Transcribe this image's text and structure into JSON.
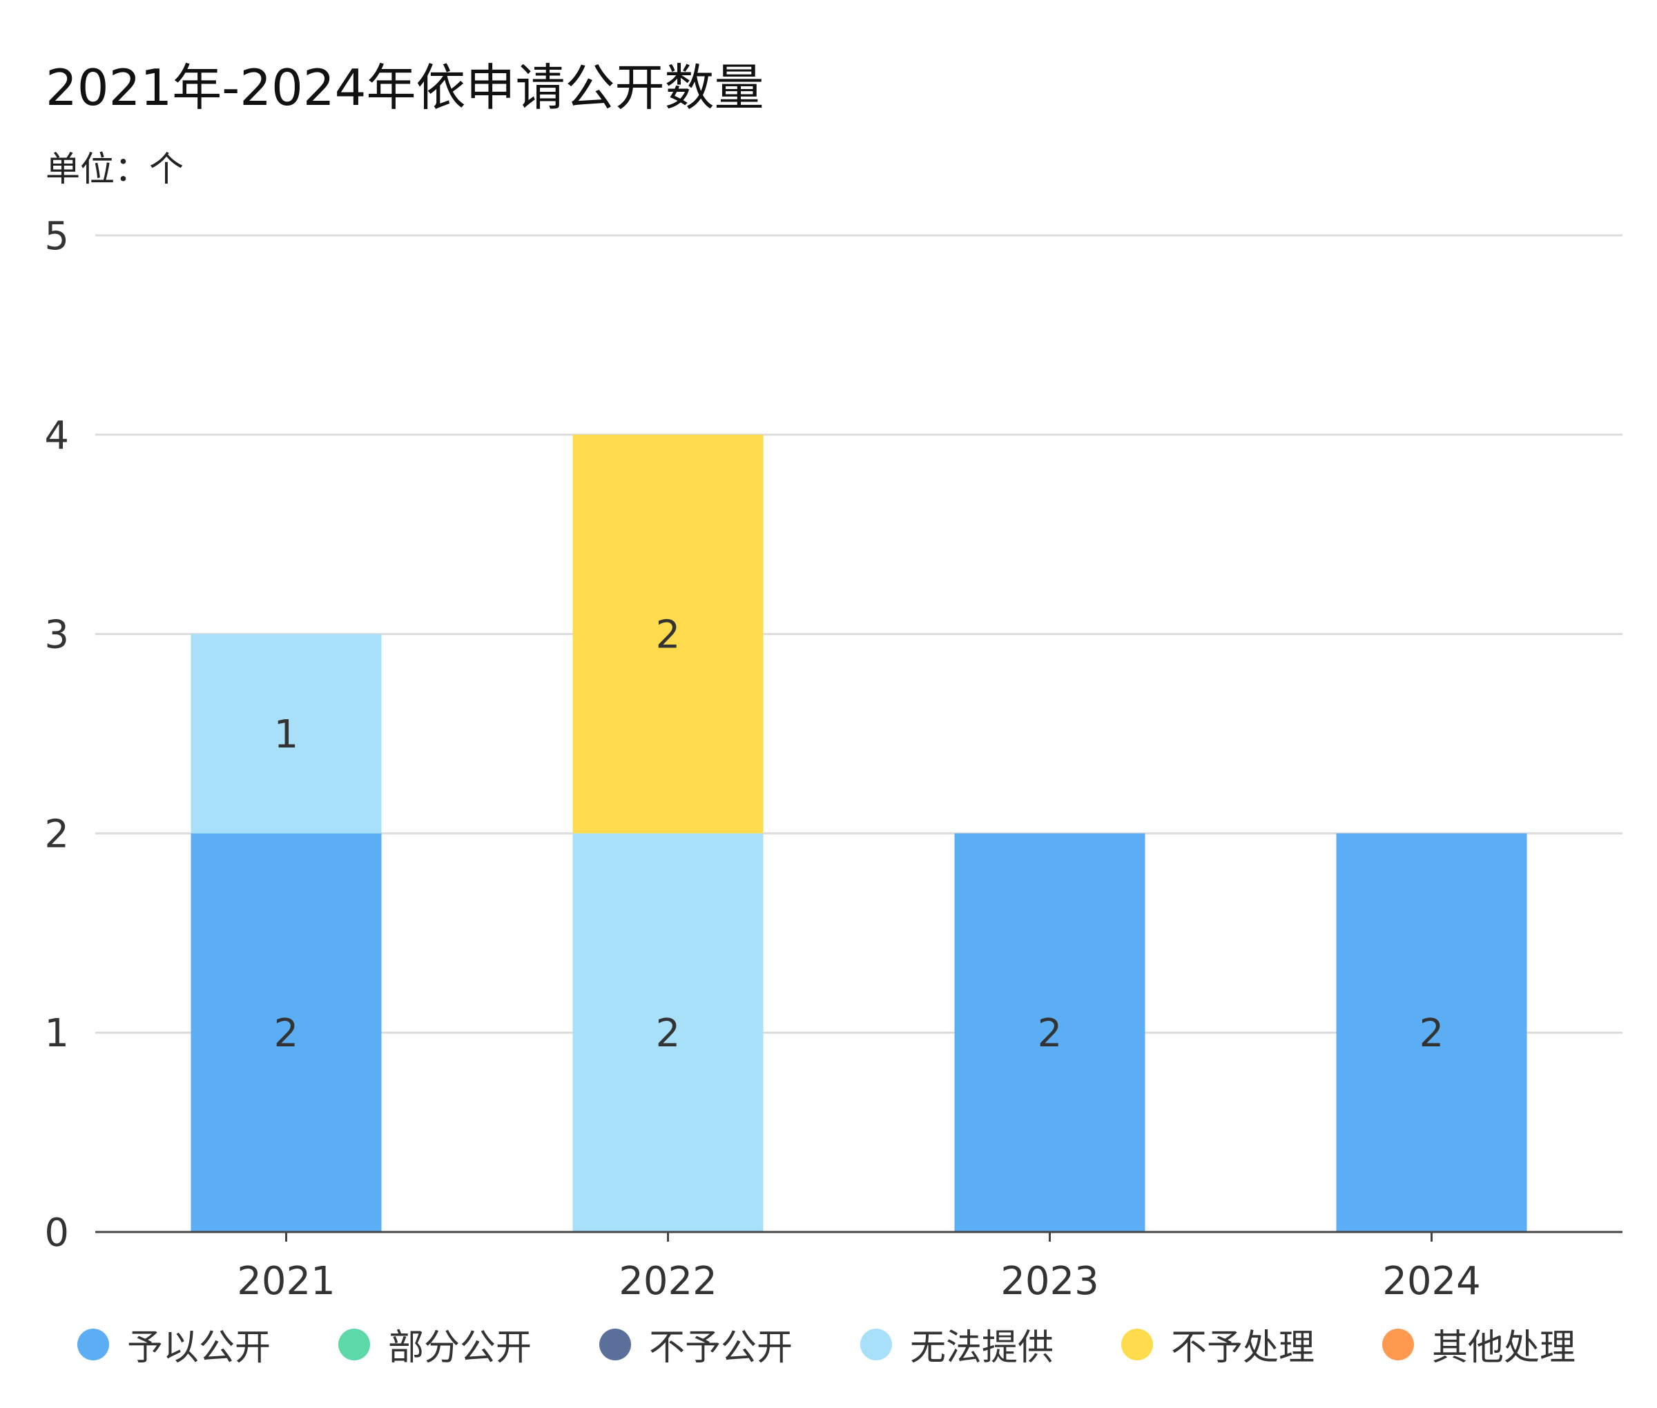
{
  "chart_data": {
    "type": "bar",
    "stacked": true,
    "title": "2021年-2024年依申请公开数量",
    "subtitle": "单位：个",
    "categories": [
      "2021",
      "2022",
      "2023",
      "2024"
    ],
    "ylim": [
      0,
      5
    ],
    "yticks": [
      "0",
      "1",
      "2",
      "3",
      "4",
      "5"
    ],
    "grid": true,
    "legend_position": "bottom",
    "series": [
      {
        "name": "予以公开",
        "color": "#5baef4",
        "values": [
          2,
          0,
          2,
          2
        ]
      },
      {
        "name": "部分公开",
        "color": "#5dd8a8",
        "values": [
          0,
          0,
          0,
          0
        ]
      },
      {
        "name": "不予公开",
        "color": "#5a6f99",
        "values": [
          0,
          0,
          0,
          0
        ]
      },
      {
        "name": "无法提供",
        "color": "#a8dff9",
        "values": [
          1,
          2,
          0,
          0
        ]
      },
      {
        "name": "不予处理",
        "color": "#fedb4d",
        "values": [
          0,
          2,
          0,
          0
        ]
      },
      {
        "name": "其他处理",
        "color": "#fd9a4f",
        "values": [
          0,
          0,
          0,
          0
        ]
      }
    ]
  }
}
